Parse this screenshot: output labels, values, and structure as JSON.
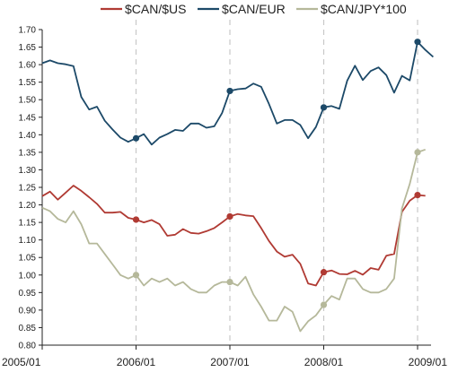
{
  "chart_data": {
    "type": "line",
    "title": "",
    "xlabel": "",
    "ylabel": "",
    "x_ticks": [
      "2005/01",
      "2006/01",
      "2007/01",
      "2008/01",
      "2009/01"
    ],
    "ylim": [
      0.8,
      1.7
    ],
    "y_ticks": [
      "0.80",
      "0.85",
      "0.90",
      "0.95",
      "1.00",
      "1.05",
      "1.10",
      "1.15",
      "1.20",
      "1.25",
      "1.30",
      "1.35",
      "1.40",
      "1.45",
      "1.50",
      "1.55",
      "1.60",
      "1.65",
      "1.70"
    ],
    "grid": false,
    "vertical_markers": [
      "2006/01",
      "2007/01",
      "2008/01",
      "2009/01"
    ],
    "legend_position": "top-right",
    "series": [
      {
        "name": "$CAN/$US",
        "color": "#b03a33",
        "markers_at": [
          "2006/01",
          "2007/01",
          "2008/01",
          "2009/01"
        ],
        "values": [
          1.225,
          1.238,
          1.215,
          1.235,
          1.255,
          1.24,
          1.222,
          1.203,
          1.178,
          1.178,
          1.18,
          1.163,
          1.158,
          1.15,
          1.157,
          1.145,
          1.112,
          1.115,
          1.131,
          1.12,
          1.118,
          1.125,
          1.134,
          1.15,
          1.167,
          1.174,
          1.17,
          1.168,
          1.134,
          1.097,
          1.067,
          1.052,
          1.058,
          1.032,
          0.976,
          0.97,
          1.008,
          1.013,
          1.003,
          1.002,
          1.012,
          1.001,
          1.02,
          1.015,
          1.055,
          1.06,
          1.18,
          1.212,
          1.228,
          1.226
        ]
      },
      {
        "name": "$CAN/EUR",
        "color": "#1c4968",
        "markers_at": [
          "2006/01",
          "2007/01",
          "2008/01",
          "2009/01"
        ],
        "values": [
          1.604,
          1.612,
          1.604,
          1.601,
          1.596,
          1.508,
          1.472,
          1.48,
          1.44,
          1.415,
          1.392,
          1.38,
          1.39,
          1.402,
          1.372,
          1.392,
          1.402,
          1.414,
          1.411,
          1.432,
          1.432,
          1.42,
          1.424,
          1.462,
          1.525,
          1.53,
          1.532,
          1.546,
          1.537,
          1.488,
          1.432,
          1.442,
          1.442,
          1.428,
          1.39,
          1.422,
          1.478,
          1.482,
          1.474,
          1.554,
          1.597,
          1.556,
          1.582,
          1.592,
          1.57,
          1.52,
          1.568,
          1.555,
          1.665,
          1.642,
          1.622
        ]
      },
      {
        "name": "$CAN/JPY*100",
        "color": "#b5b89a",
        "markers_at": [
          "2006/01",
          "2007/01",
          "2008/01",
          "2009/01"
        ],
        "values": [
          1.192,
          1.182,
          1.16,
          1.15,
          1.182,
          1.145,
          1.09,
          1.09,
          1.06,
          1.03,
          1.0,
          0.99,
          1.0,
          0.97,
          0.99,
          0.98,
          0.99,
          0.97,
          0.98,
          0.96,
          0.95,
          0.95,
          0.97,
          0.98,
          0.98,
          0.97,
          0.995,
          0.945,
          0.91,
          0.87,
          0.87,
          0.91,
          0.895,
          0.84,
          0.868,
          0.885,
          0.915,
          0.94,
          0.93,
          0.99,
          0.99,
          0.96,
          0.95,
          0.95,
          0.96,
          0.99,
          1.19,
          1.26,
          1.35,
          1.358
        ]
      }
    ]
  }
}
